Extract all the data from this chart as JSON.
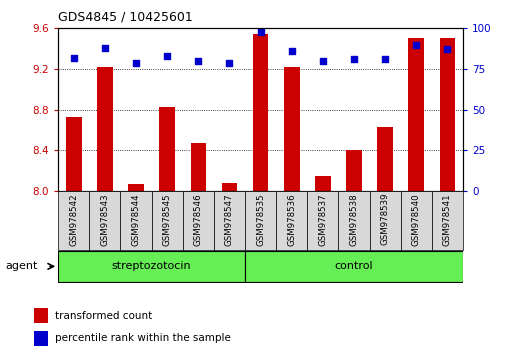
{
  "title": "GDS4845 / 10425601",
  "samples": [
    "GSM978542",
    "GSM978543",
    "GSM978544",
    "GSM978545",
    "GSM978546",
    "GSM978547",
    "GSM978535",
    "GSM978536",
    "GSM978537",
    "GSM978538",
    "GSM978539",
    "GSM978540",
    "GSM978541"
  ],
  "groups": [
    "streptozotocin",
    "streptozotocin",
    "streptozotocin",
    "streptozotocin",
    "streptozotocin",
    "streptozotocin",
    "control",
    "control",
    "control",
    "control",
    "control",
    "control",
    "control"
  ],
  "bar_values": [
    8.73,
    9.22,
    8.07,
    8.83,
    8.47,
    8.08,
    9.54,
    9.22,
    8.15,
    8.4,
    8.63,
    9.5,
    9.5
  ],
  "percentile_values": [
    82,
    88,
    79,
    83,
    80,
    79,
    98,
    86,
    80,
    81,
    81,
    90,
    87
  ],
  "ylim_left": [
    8.0,
    9.6
  ],
  "ylim_right": [
    0,
    100
  ],
  "bar_color": "#cc0000",
  "dot_color": "#0000cc",
  "bg_color": "#ffffff",
  "tick_color_left": "#cc0000",
  "tick_color_right": "#0000cc",
  "yticks_left": [
    8.0,
    8.4,
    8.8,
    9.2,
    9.6
  ],
  "yticks_right": [
    0,
    25,
    50,
    75,
    100
  ],
  "legend": [
    {
      "label": "transformed count",
      "color": "#cc0000"
    },
    {
      "label": "percentile rank within the sample",
      "color": "#0000cc"
    }
  ]
}
